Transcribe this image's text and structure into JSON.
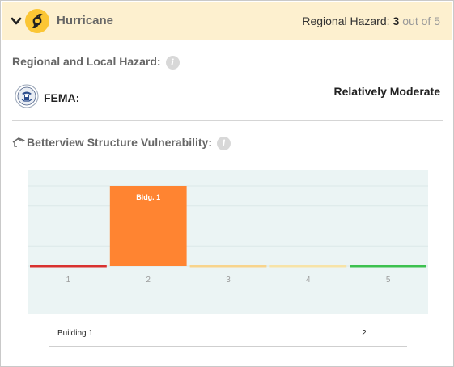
{
  "header": {
    "title": "Hurricane",
    "regional_label": "Regional Hazard:",
    "score": "3",
    "out_of": "out of 5",
    "icon": "hurricane-icon",
    "accent_color": "#fbc634"
  },
  "regional_local": {
    "title": "Regional and Local Hazard:",
    "source_label": "FEMA:",
    "source_value": "Relatively Moderate"
  },
  "structure": {
    "title": "Betterview Structure Vulnerability:",
    "buildings": [
      {
        "name": "Building 1",
        "score": "2"
      }
    ]
  },
  "chart_data": {
    "type": "bar",
    "categories": [
      "1",
      "2",
      "3",
      "4",
      "5"
    ],
    "values": [
      0,
      1,
      0,
      0,
      0
    ],
    "bar_labels": [
      "",
      "Bldg. 1",
      "",
      "",
      ""
    ],
    "category_colors": [
      "#d9312f",
      "#ff8431",
      "#f8d48c",
      "#f7e3a7",
      "#3cc14f"
    ],
    "ylim": [
      0,
      1
    ],
    "grid": true,
    "legend": "none"
  }
}
